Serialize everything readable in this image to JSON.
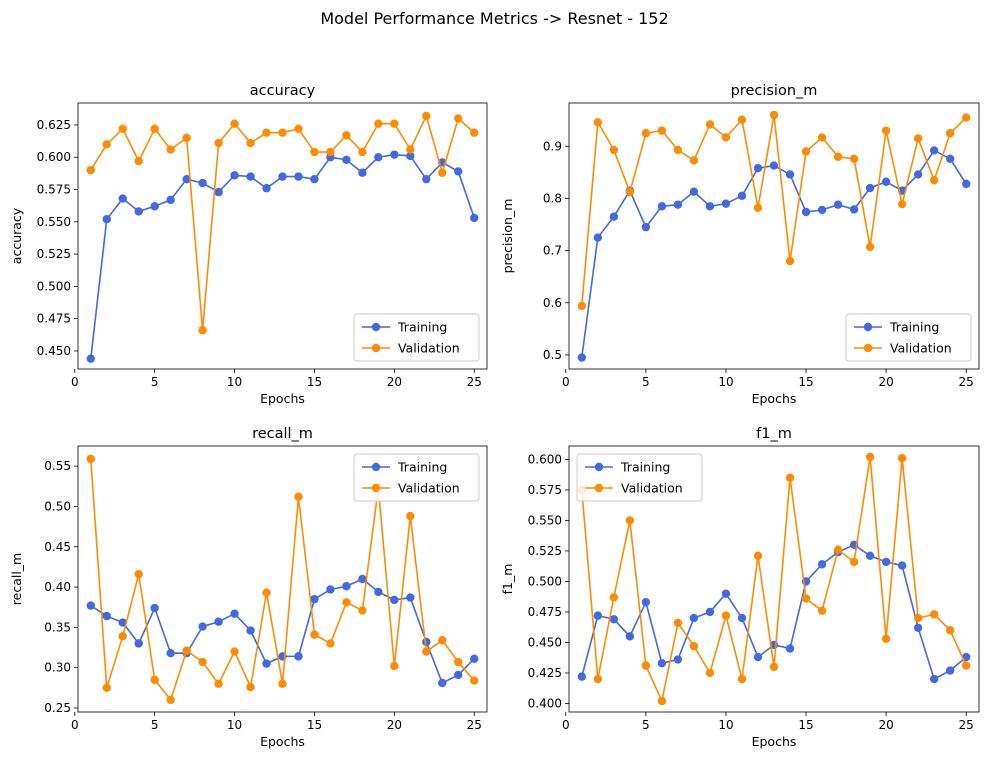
{
  "suptitle": "Model Performance Metrics -> Resnet - 152",
  "colors": {
    "training": "#4169e1",
    "validation": "#ff8c00"
  },
  "chart_data": [
    {
      "type": "line",
      "title": "accuracy",
      "xlabel": "Epochs",
      "ylabel": "accuracy",
      "xlim": [
        0.2,
        25.8
      ],
      "ylim": [
        0.436,
        0.642
      ],
      "xticks": [
        0,
        5,
        10,
        15,
        20,
        25
      ],
      "yticks": [
        0.45,
        0.475,
        0.5,
        0.525,
        0.55,
        0.575,
        0.6,
        0.625
      ],
      "ytick_labels": [
        "0.450",
        "0.475",
        "0.500",
        "0.525",
        "0.550",
        "0.575",
        "0.600",
        "0.625"
      ],
      "legend": "lower-right",
      "x": [
        1,
        2,
        3,
        4,
        5,
        6,
        7,
        8,
        9,
        10,
        11,
        12,
        13,
        14,
        15,
        16,
        17,
        18,
        19,
        20,
        21,
        22,
        23,
        24,
        25
      ],
      "series": [
        {
          "name": "Training",
          "values": [
            0.444,
            0.552,
            0.568,
            0.558,
            0.562,
            0.567,
            0.583,
            0.58,
            0.573,
            0.586,
            0.585,
            0.576,
            0.585,
            0.585,
            0.583,
            0.6,
            0.598,
            0.588,
            0.6,
            0.602,
            0.601,
            0.583,
            0.596,
            0.589,
            0.553
          ]
        },
        {
          "name": "Validation",
          "values": [
            0.59,
            0.61,
            0.622,
            0.597,
            0.622,
            0.606,
            0.615,
            0.466,
            0.611,
            0.626,
            0.611,
            0.619,
            0.619,
            0.622,
            0.604,
            0.604,
            0.617,
            0.604,
            0.626,
            0.626,
            0.606,
            0.632,
            0.588,
            0.63,
            0.619
          ]
        }
      ]
    },
    {
      "type": "line",
      "title": "precision_m",
      "xlabel": "Epochs",
      "ylabel": "precision_m",
      "xlim": [
        0.2,
        25.8
      ],
      "ylim": [
        0.473,
        0.983
      ],
      "xticks": [
        0,
        5,
        10,
        15,
        20,
        25
      ],
      "yticks": [
        0.5,
        0.6,
        0.7,
        0.8,
        0.9
      ],
      "ytick_labels": [
        "0.5",
        "0.6",
        "0.7",
        "0.8",
        "0.9"
      ],
      "legend": "lower-right",
      "x": [
        1,
        2,
        3,
        4,
        5,
        6,
        7,
        8,
        9,
        10,
        11,
        12,
        13,
        14,
        15,
        16,
        17,
        18,
        19,
        20,
        21,
        22,
        23,
        24,
        25
      ],
      "series": [
        {
          "name": "Training",
          "values": [
            0.495,
            0.725,
            0.765,
            0.815,
            0.745,
            0.785,
            0.788,
            0.813,
            0.785,
            0.79,
            0.805,
            0.858,
            0.863,
            0.846,
            0.774,
            0.778,
            0.788,
            0.779,
            0.82,
            0.832,
            0.815,
            0.846,
            0.892,
            0.876,
            0.828
          ]
        },
        {
          "name": "Validation",
          "values": [
            0.594,
            0.946,
            0.893,
            0.812,
            0.925,
            0.93,
            0.893,
            0.873,
            0.942,
            0.917,
            0.951,
            0.782,
            0.96,
            0.68,
            0.89,
            0.917,
            0.88,
            0.876,
            0.707,
            0.93,
            0.789,
            0.915,
            0.835,
            0.925,
            0.955
          ]
        }
      ]
    },
    {
      "type": "line",
      "title": "recall_m",
      "xlabel": "Epochs",
      "ylabel": "recall_m",
      "xlim": [
        0.2,
        25.8
      ],
      "ylim": [
        0.245,
        0.575
      ],
      "xticks": [
        0,
        5,
        10,
        15,
        20,
        25
      ],
      "yticks": [
        0.25,
        0.3,
        0.35,
        0.4,
        0.45,
        0.5,
        0.55
      ],
      "ytick_labels": [
        "0.25",
        "0.30",
        "0.35",
        "0.40",
        "0.45",
        "0.50",
        "0.55"
      ],
      "legend": "upper-right",
      "x": [
        1,
        2,
        3,
        4,
        5,
        6,
        7,
        8,
        9,
        10,
        11,
        12,
        13,
        14,
        15,
        16,
        17,
        18,
        19,
        20,
        21,
        22,
        23,
        24,
        25
      ],
      "series": [
        {
          "name": "Training",
          "values": [
            0.377,
            0.364,
            0.356,
            0.33,
            0.374,
            0.318,
            0.318,
            0.351,
            0.357,
            0.367,
            0.346,
            0.305,
            0.314,
            0.314,
            0.385,
            0.397,
            0.401,
            0.41,
            0.394,
            0.384,
            0.387,
            0.332,
            0.281,
            0.291,
            0.311
          ]
        },
        {
          "name": "Validation",
          "values": [
            0.559,
            0.275,
            0.339,
            0.416,
            0.285,
            0.26,
            0.321,
            0.307,
            0.28,
            0.32,
            0.276,
            0.393,
            0.28,
            0.512,
            0.341,
            0.33,
            0.381,
            0.371,
            0.523,
            0.302,
            0.488,
            0.32,
            0.334,
            0.307,
            0.284
          ]
        }
      ]
    },
    {
      "type": "line",
      "title": "f1_m",
      "xlabel": "Epochs",
      "ylabel": "f1_m",
      "xlim": [
        0.2,
        25.8
      ],
      "ylim": [
        0.393,
        0.611
      ],
      "xticks": [
        0,
        5,
        10,
        15,
        20,
        25
      ],
      "yticks": [
        0.4,
        0.425,
        0.45,
        0.475,
        0.5,
        0.525,
        0.55,
        0.575,
        0.6
      ],
      "ytick_labels": [
        "0.400",
        "0.425",
        "0.450",
        "0.475",
        "0.500",
        "0.525",
        "0.550",
        "0.575",
        "0.600"
      ],
      "legend": "upper-left",
      "x": [
        1,
        2,
        3,
        4,
        5,
        6,
        7,
        8,
        9,
        10,
        11,
        12,
        13,
        14,
        15,
        16,
        17,
        18,
        19,
        20,
        21,
        22,
        23,
        24,
        25
      ],
      "series": [
        {
          "name": "Training",
          "values": [
            0.422,
            0.472,
            0.469,
            0.455,
            0.483,
            0.433,
            0.436,
            0.47,
            0.475,
            0.49,
            0.47,
            0.438,
            0.448,
            0.445,
            0.5,
            0.514,
            0.524,
            0.53,
            0.521,
            0.516,
            0.513,
            0.462,
            0.42,
            0.427,
            0.438
          ]
        },
        {
          "name": "Validation",
          "values": [
            0.575,
            0.42,
            0.487,
            0.55,
            0.431,
            0.402,
            0.466,
            0.447,
            0.425,
            0.472,
            0.42,
            0.521,
            0.43,
            0.585,
            0.486,
            0.476,
            0.526,
            0.516,
            0.602,
            0.453,
            0.601,
            0.47,
            0.473,
            0.46,
            0.431
          ]
        }
      ]
    }
  ]
}
